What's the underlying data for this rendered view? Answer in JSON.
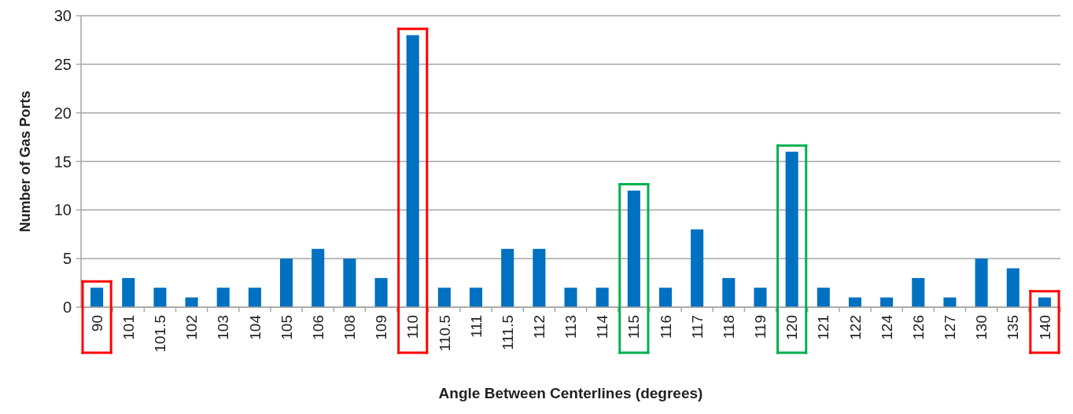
{
  "chart_data": {
    "type": "bar",
    "xlabel": "Angle Between Centerlines (degrees)",
    "ylabel": "Number of Gas Ports",
    "categories": [
      "90",
      "101",
      "101.5",
      "102",
      "103",
      "104",
      "105",
      "106",
      "108",
      "109",
      "110",
      "110.5",
      "111",
      "111.5",
      "112",
      "113",
      "114",
      "115",
      "116",
      "117",
      "118",
      "119",
      "120",
      "121",
      "122",
      "124",
      "126",
      "127",
      "130",
      "135",
      "140"
    ],
    "values": [
      2,
      3,
      2,
      1,
      2,
      2,
      5,
      6,
      5,
      3,
      28,
      2,
      2,
      6,
      6,
      2,
      2,
      12,
      2,
      8,
      3,
      2,
      16,
      2,
      1,
      1,
      3,
      1,
      5,
      4,
      1
    ],
    "color": "#0070c0",
    "ylim": [
      0,
      30
    ],
    "yticks": [
      0,
      5,
      10,
      15,
      20,
      25,
      30
    ],
    "grid": "y"
  }
}
